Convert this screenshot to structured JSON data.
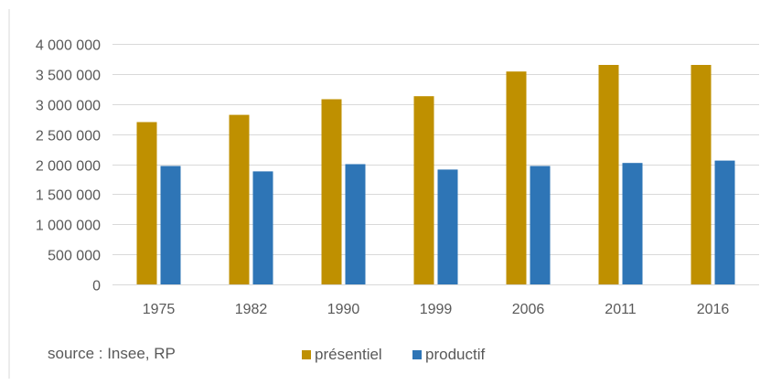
{
  "chart_data": {
    "type": "bar",
    "categories": [
      "1975",
      "1982",
      "1990",
      "1999",
      "2006",
      "2011",
      "2016"
    ],
    "series": [
      {
        "name": "présentiel",
        "color": "#BF9000",
        "values": [
          2700000,
          2820000,
          3080000,
          3130000,
          3540000,
          3650000,
          3650000
        ]
      },
      {
        "name": "productif",
        "color": "#2E75B6",
        "values": [
          1970000,
          1880000,
          2000000,
          1910000,
          1970000,
          2020000,
          2060000
        ]
      }
    ],
    "yticks": [
      "0",
      "500 000",
      "1 000 000",
      "1 500 000",
      "2 000 000",
      "2 500 000",
      "3 000 000",
      "3 500 000",
      "4 000 000"
    ],
    "ylim": [
      0,
      4000000
    ],
    "title": "",
    "xlabel": "",
    "ylabel": "",
    "grid": true,
    "legend": "bottom"
  },
  "source_note": "source : Insee, RP"
}
